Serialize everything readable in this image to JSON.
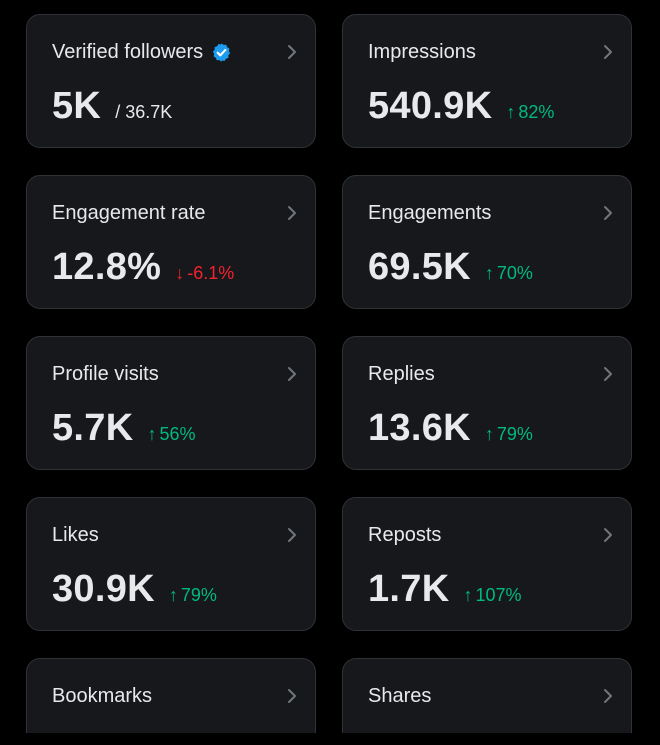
{
  "colors": {
    "card_bg": "#16181c",
    "card_border": "#2f3336",
    "text": "#e7e9ea",
    "up": "#00ba7c",
    "down": "#f4212e",
    "verified": "#1d9bf0"
  },
  "cards": [
    {
      "label": "Verified followers",
      "value": "5K",
      "sub": "/ 36.7K",
      "delta": "",
      "trend": ""
    },
    {
      "label": "Impressions",
      "value": "540.9K",
      "sub": "",
      "delta": "82%",
      "trend": "up"
    },
    {
      "label": "Engagement rate",
      "value": "12.8%",
      "sub": "",
      "delta": "-6.1%",
      "trend": "down"
    },
    {
      "label": "Engagements",
      "value": "69.5K",
      "sub": "",
      "delta": "70%",
      "trend": "up"
    },
    {
      "label": "Profile visits",
      "value": "5.7K",
      "sub": "",
      "delta": "56%",
      "trend": "up"
    },
    {
      "label": "Replies",
      "value": "13.6K",
      "sub": "",
      "delta": "79%",
      "trend": "up"
    },
    {
      "label": "Likes",
      "value": "30.9K",
      "sub": "",
      "delta": "79%",
      "trend": "up"
    },
    {
      "label": "Reposts",
      "value": "1.7K",
      "sub": "",
      "delta": "107%",
      "trend": "up"
    },
    {
      "label": "Bookmarks",
      "value": "",
      "sub": "",
      "delta": "",
      "trend": ""
    },
    {
      "label": "Shares",
      "value": "",
      "sub": "",
      "delta": "",
      "trend": ""
    }
  ],
  "icons": {
    "verified": "verified-badge-icon",
    "chevron": "chevron-right-icon",
    "arrow_up": "↑",
    "arrow_down": "↓"
  }
}
